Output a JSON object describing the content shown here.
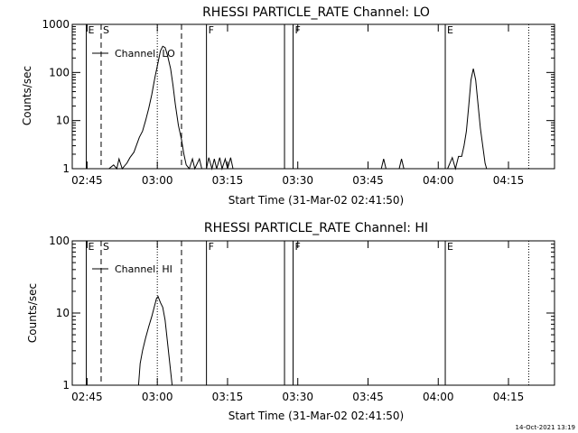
{
  "footer": "14-Oct-2021 13:19",
  "chart_data": [
    {
      "type": "line",
      "title": "RHESSI PARTICLE_RATE Channel: LO",
      "xlabel": "Start Time (31-Mar-02 02:41:50)",
      "ylabel": "Counts/sec",
      "yscale": "log",
      "ylim": [
        1,
        1000
      ],
      "xlim": [
        "02:41:50",
        "04:24:50"
      ],
      "x_ticks": [
        "02:45",
        "03:00",
        "03:15",
        "03:30",
        "03:45",
        "04:00",
        "04:15"
      ],
      "y_ticks": [
        "1",
        "10",
        "100",
        "1000"
      ],
      "legend": "Channel: LO",
      "legend_position": "top-left",
      "markers": [
        {
          "time": "02:44:50",
          "label": "E",
          "style": "solid"
        },
        {
          "time": "02:48:00",
          "label": "S",
          "style": "dashed"
        },
        {
          "time": "03:00:00",
          "label": "",
          "style": "dotted"
        },
        {
          "time": "03:05:10",
          "label": "",
          "style": "dashed"
        },
        {
          "time": "03:10:30",
          "label": "F",
          "style": "solid"
        },
        {
          "time": "03:27:10",
          "label": "",
          "style": "solid"
        },
        {
          "time": "03:29:00",
          "label": "F",
          "style": "solid"
        },
        {
          "time": "04:01:30",
          "label": "E",
          "style": "solid"
        },
        {
          "time": "04:19:20",
          "label": "",
          "style": "dotted"
        }
      ],
      "series": [
        {
          "name": "",
          "points": [
            [
              "02:49:40",
              1
            ],
            [
              "02:50:40",
              1.2
            ],
            [
              "02:51:20",
              1
            ],
            [
              "02:51:50",
              1.6
            ],
            [
              "02:52:30",
              1
            ],
            [
              "02:53:30",
              1.3
            ],
            [
              "02:54:10",
              1.7
            ],
            [
              "02:55:00",
              2.2
            ],
            [
              "02:55:30",
              3
            ],
            [
              "02:56:10",
              4.5
            ],
            [
              "02:56:50",
              6
            ],
            [
              "02:57:30",
              10
            ],
            [
              "02:58:10",
              18
            ],
            [
              "02:58:50",
              35
            ],
            [
              "02:59:30",
              80
            ],
            [
              "03:00:10",
              160
            ],
            [
              "03:00:40",
              280
            ],
            [
              "03:01:10",
              350
            ],
            [
              "03:01:40",
              330
            ],
            [
              "03:02:10",
              230
            ],
            [
              "03:02:50",
              120
            ],
            [
              "03:03:20",
              55
            ],
            [
              "03:03:50",
              22
            ],
            [
              "03:04:30",
              8
            ],
            [
              "03:05:10",
              4
            ],
            [
              "03:05:40",
              2
            ],
            [
              "03:06:10",
              1.2
            ],
            [
              "03:06:50",
              1
            ],
            [
              "03:07:30",
              1.6
            ],
            [
              "03:08:00",
              1
            ],
            [
              "03:09:00",
              1.6
            ],
            [
              "03:09:30",
              1
            ],
            [
              "03:10:30",
              1
            ],
            [
              "03:11:00",
              1.7
            ],
            [
              "03:11:40",
              1
            ],
            [
              "03:12:10",
              1.6
            ],
            [
              "03:12:40",
              1
            ],
            [
              "03:13:20",
              1.7
            ],
            [
              "03:13:50",
              1
            ],
            [
              "03:14:30",
              1.6
            ],
            [
              "03:15:00",
              1
            ],
            [
              "03:15:40",
              1.7
            ],
            [
              "03:16:10",
              1
            ]
          ]
        },
        {
          "name": "",
          "points": [
            [
              "03:47:50",
              1
            ],
            [
              "03:48:20",
              1.6
            ],
            [
              "03:48:50",
              1
            ],
            [
              "03:51:40",
              1
            ],
            [
              "03:52:10",
              1.6
            ],
            [
              "03:52:40",
              1
            ]
          ]
        },
        {
          "name": "",
          "points": [
            [
              "04:02:00",
              1
            ],
            [
              "04:03:00",
              1.7
            ],
            [
              "04:03:40",
              1
            ],
            [
              "04:04:20",
              1.8
            ],
            [
              "04:05:00",
              1.8
            ],
            [
              "04:05:30",
              3
            ],
            [
              "04:06:00",
              6
            ],
            [
              "04:06:30",
              20
            ],
            [
              "04:07:00",
              70
            ],
            [
              "04:07:30",
              120
            ],
            [
              "04:08:00",
              70
            ],
            [
              "04:08:30",
              22
            ],
            [
              "04:09:00",
              7
            ],
            [
              "04:09:30",
              3
            ],
            [
              "04:10:00",
              1.3
            ],
            [
              "04:10:20",
              1
            ]
          ]
        }
      ]
    },
    {
      "type": "line",
      "title": "RHESSI PARTICLE_RATE Channel: HI",
      "xlabel": "Start Time (31-Mar-02 02:41:50)",
      "ylabel": "Counts/sec",
      "yscale": "log",
      "ylim": [
        1,
        100
      ],
      "xlim": [
        "02:41:50",
        "04:24:50"
      ],
      "x_ticks": [
        "02:45",
        "03:00",
        "03:15",
        "03:30",
        "03:45",
        "04:00",
        "04:15"
      ],
      "y_ticks": [
        "1",
        "10",
        "100"
      ],
      "legend": "Channel: HI",
      "legend_position": "top-left",
      "markers": [
        {
          "time": "02:44:50",
          "label": "E",
          "style": "solid"
        },
        {
          "time": "02:48:00",
          "label": "S",
          "style": "dashed"
        },
        {
          "time": "03:00:00",
          "label": "",
          "style": "dotted"
        },
        {
          "time": "03:05:10",
          "label": "",
          "style": "dashed"
        },
        {
          "time": "03:10:30",
          "label": "F",
          "style": "solid"
        },
        {
          "time": "03:27:10",
          "label": "",
          "style": "solid"
        },
        {
          "time": "03:29:00",
          "label": "F",
          "style": "solid"
        },
        {
          "time": "04:01:30",
          "label": "E",
          "style": "solid"
        },
        {
          "time": "04:19:20",
          "label": "",
          "style": "dotted"
        }
      ],
      "series": [
        {
          "name": "",
          "points": [
            [
              "02:56:00",
              1
            ],
            [
              "02:56:20",
              2
            ],
            [
              "02:56:50",
              3
            ],
            [
              "02:57:30",
              4.5
            ],
            [
              "02:58:10",
              6.5
            ],
            [
              "02:58:50",
              9
            ],
            [
              "02:59:20",
              12
            ],
            [
              "02:59:50",
              16
            ],
            [
              "03:00:10",
              17
            ],
            [
              "03:00:40",
              14
            ],
            [
              "03:01:10",
              12
            ],
            [
              "03:01:40",
              8
            ],
            [
              "03:02:10",
              4
            ],
            [
              "03:02:40",
              2
            ],
            [
              "03:03:10",
              1
            ]
          ]
        }
      ]
    }
  ]
}
